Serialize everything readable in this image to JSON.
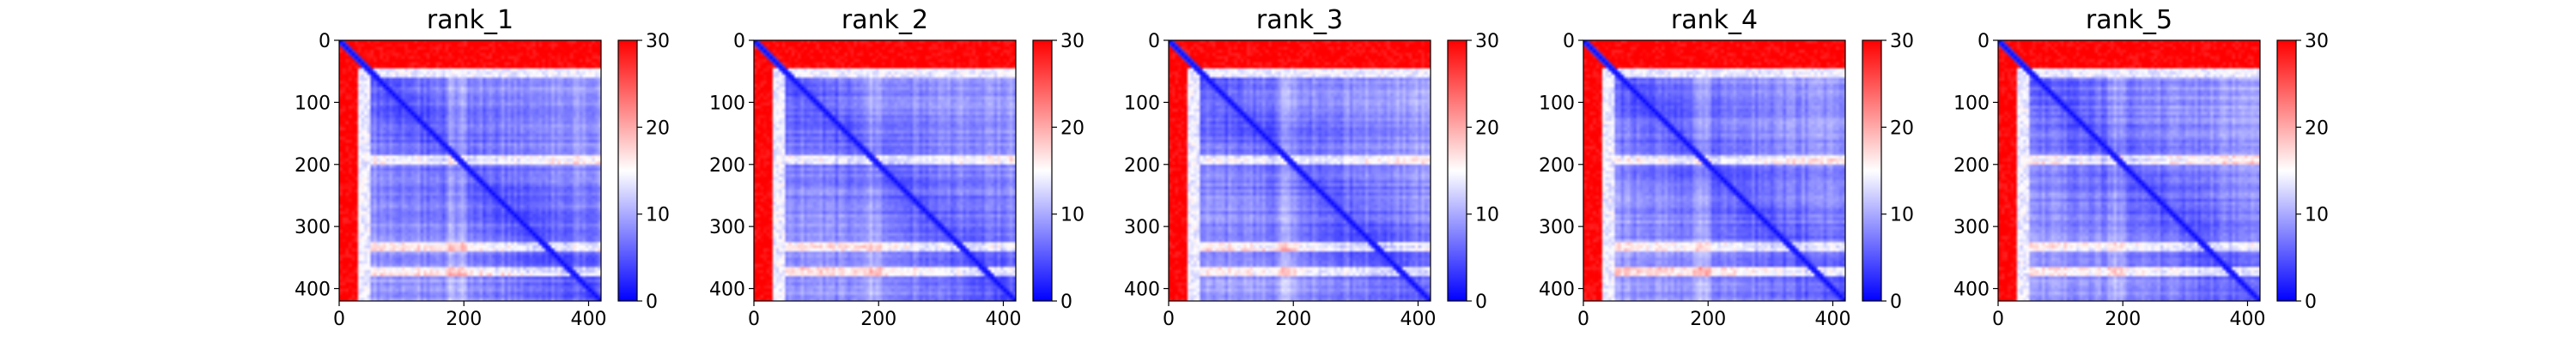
{
  "chart_data": [
    {
      "type": "heatmap",
      "title": "rank_1",
      "xlim": [
        0,
        420
      ],
      "ylim": [
        420,
        0
      ],
      "xticks": [
        0,
        200,
        400
      ],
      "yticks": [
        0,
        100,
        200,
        300,
        400
      ],
      "colorbar": {
        "min": 0,
        "max": 30,
        "ticks": [
          0,
          10,
          20,
          30
        ],
        "colormap": "bwr"
      },
      "features": {
        "bright_rows": [
          190,
          330,
          370
        ]
      }
    },
    {
      "type": "heatmap",
      "title": "rank_2",
      "xlim": [
        0,
        420
      ],
      "ylim": [
        420,
        0
      ],
      "xticks": [
        0,
        200,
        400
      ],
      "yticks": [
        0,
        100,
        200,
        300,
        400
      ],
      "colorbar": {
        "min": 0,
        "max": 30,
        "ticks": [
          0,
          10,
          20,
          30
        ],
        "colormap": "bwr"
      },
      "features": {
        "bright_rows": [
          190,
          330,
          370
        ]
      }
    },
    {
      "type": "heatmap",
      "title": "rank_3",
      "xlim": [
        0,
        420
      ],
      "ylim": [
        420,
        0
      ],
      "xticks": [
        0,
        200,
        400
      ],
      "yticks": [
        0,
        100,
        200,
        300,
        400
      ],
      "colorbar": {
        "min": 0,
        "max": 30,
        "ticks": [
          0,
          10,
          20,
          30
        ],
        "colormap": "bwr"
      },
      "features": {
        "bright_rows": [
          190,
          330,
          370
        ]
      }
    },
    {
      "type": "heatmap",
      "title": "rank_4",
      "xlim": [
        0,
        420
      ],
      "ylim": [
        420,
        0
      ],
      "xticks": [
        0,
        200,
        400
      ],
      "yticks": [
        0,
        100,
        200,
        300,
        400
      ],
      "colorbar": {
        "min": 0,
        "max": 30,
        "ticks": [
          0,
          10,
          20,
          30
        ],
        "colormap": "bwr"
      },
      "features": {
        "bright_rows": [
          190,
          330,
          370
        ]
      }
    },
    {
      "type": "heatmap",
      "title": "rank_5",
      "xlim": [
        0,
        420
      ],
      "ylim": [
        420,
        0
      ],
      "xticks": [
        0,
        200,
        400
      ],
      "yticks": [
        0,
        100,
        200,
        300,
        400
      ],
      "colorbar": {
        "min": 0,
        "max": 30,
        "ticks": [
          0,
          10,
          20,
          30
        ],
        "colormap": "bwr"
      },
      "features": {
        "bright_rows": [
          190,
          330,
          370
        ]
      }
    }
  ]
}
